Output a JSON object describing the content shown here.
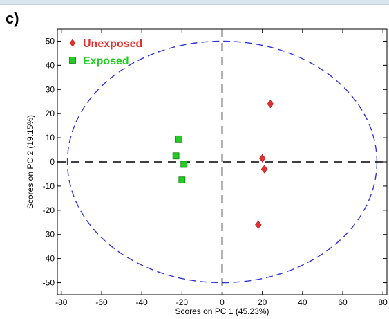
{
  "panel_label": "c)",
  "chart_data": {
    "type": "scatter",
    "title": "",
    "xlabel": "Scores on PC 1 (45.23%)",
    "ylabel": "Scores on PC 2 (19.15%)",
    "xlim": [
      -82,
      82
    ],
    "ylim": [
      -55,
      55
    ],
    "xticks": [
      -80,
      -60,
      -40,
      -20,
      0,
      20,
      40,
      60,
      80
    ],
    "yticks": [
      -50,
      -40,
      -30,
      -20,
      -10,
      0,
      10,
      20,
      30,
      40,
      50
    ],
    "grid": false,
    "legend_position": "top-left",
    "reference_lines": {
      "x": 0,
      "y": 0,
      "style": "dashed",
      "color": "#000000"
    },
    "confidence_ellipse": {
      "center": [
        0,
        0
      ],
      "rx": 77,
      "ry": 50,
      "color": "#3333dd",
      "style": "dashed"
    },
    "series": [
      {
        "name": "Unexposed",
        "marker": "diamond",
        "color": "#e03030",
        "label_color": "#e03030",
        "points": [
          [
            24,
            24
          ],
          [
            20,
            1.5
          ],
          [
            21,
            -3
          ],
          [
            18,
            -26
          ]
        ]
      },
      {
        "name": "Exposed",
        "marker": "square",
        "color": "#22cc22",
        "label_color": "#22cc22",
        "points": [
          [
            -21.5,
            9.5
          ],
          [
            -23,
            2.5
          ],
          [
            -19,
            -1
          ],
          [
            -20,
            -7.5
          ]
        ]
      }
    ]
  }
}
